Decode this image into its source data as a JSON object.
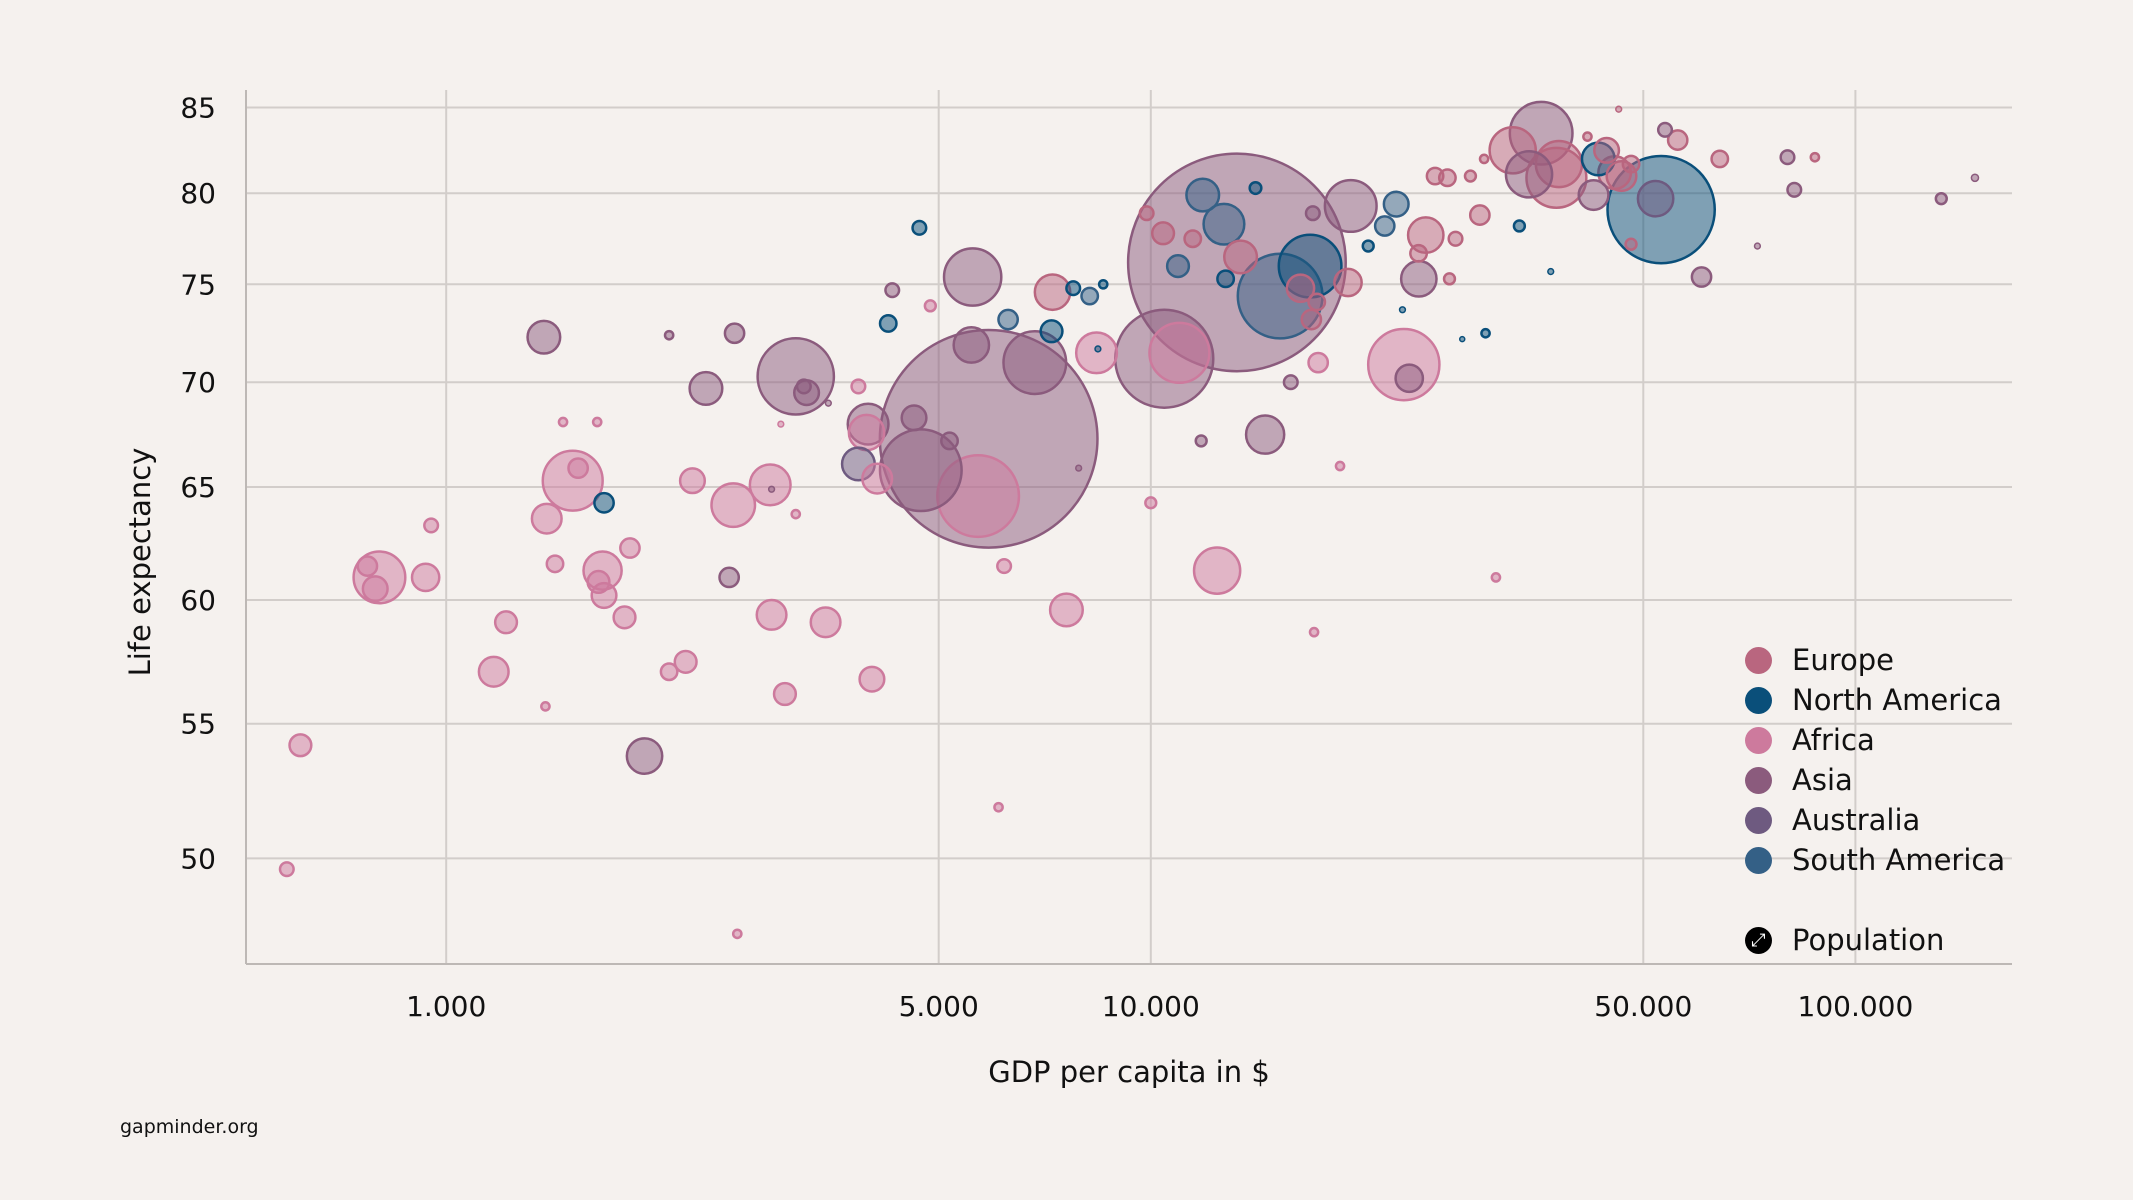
{
  "chart_data": {
    "type": "scatter",
    "variant": "bubble",
    "xlabel": "GDP per capita in $",
    "ylabel": "Life expectancy",
    "x_scale": "log",
    "x_ticks": [
      {
        "value": 1000,
        "label": "1.000"
      },
      {
        "value": 5000,
        "label": "5.000"
      },
      {
        "value": 10000,
        "label": "10.000"
      },
      {
        "value": 50000,
        "label": "50.000"
      },
      {
        "value": 100000,
        "label": "100.000"
      }
    ],
    "y_ticks": [
      {
        "value": 85,
        "label": "85"
      },
      {
        "value": 80,
        "label": "80"
      },
      {
        "value": 75,
        "label": "75"
      },
      {
        "value": 70,
        "label": "70"
      },
      {
        "value": 65,
        "label": "65"
      },
      {
        "value": 60,
        "label": "60"
      },
      {
        "value": 55,
        "label": "55"
      },
      {
        "value": 50,
        "label": "50"
      }
    ],
    "xlim": [
      500,
      200000
    ],
    "ylim": [
      46,
      86
    ],
    "grid": true,
    "legend_position": "bottom-right",
    "size_legend": "Population",
    "fields": [
      "gdp_per_capita",
      "life_expectancy",
      "population_millions"
    ],
    "series": [
      {
        "name": "Europe",
        "color": "#b9667f",
        "points": [
          [
            7253,
            74.6,
            37
          ],
          [
            13410,
            76.5,
            31.5
          ],
          [
            16310,
            74.8,
            22
          ],
          [
            19050,
            75.1,
            22
          ],
          [
            17200,
            74.1,
            8
          ],
          [
            16900,
            73.2,
            11
          ],
          [
            10410,
            77.8,
            14
          ],
          [
            9865,
            78.9,
            5.5
          ],
          [
            11470,
            77.5,
            8
          ],
          [
            24560,
            77.7,
            37
          ],
          [
            23990,
            76.7,
            8
          ],
          [
            25320,
            81.0,
            8
          ],
          [
            26360,
            80.9,
            8
          ],
          [
            28420,
            81.0,
            3.5
          ],
          [
            29310,
            78.8,
            11
          ],
          [
            27070,
            77.5,
            5.5
          ],
          [
            26540,
            75.3,
            3.5
          ],
          [
            29720,
            82.0,
            2
          ],
          [
            32630,
            82.5,
            63
          ],
          [
            37950,
            81.7,
            63
          ],
          [
            37640,
            80.9,
            106
          ],
          [
            41660,
            83.3,
            2
          ],
          [
            44350,
            82.5,
            18
          ],
          [
            45530,
            81.2,
            31.5
          ],
          [
            48040,
            81.7,
            8
          ],
          [
            46560,
            81.0,
            26
          ],
          [
            48040,
            77.2,
            3.5
          ],
          [
            55950,
            83.1,
            11
          ],
          [
            64200,
            82.0,
            8
          ],
          [
            87600,
            82.1,
            2
          ],
          [
            46140,
            84.9,
            1
          ]
        ]
      },
      {
        "name": "North America",
        "color": "#0a4f7a",
        "points": [
          [
            1675,
            64.3,
            11
          ],
          [
            4694,
            78.1,
            5.5
          ],
          [
            4240,
            73.0,
            8
          ],
          [
            7230,
            72.6,
            14
          ],
          [
            7761,
            74.8,
            5.5
          ],
          [
            8560,
            75.0,
            2
          ],
          [
            14080,
            80.3,
            4
          ],
          [
            12770,
            75.3,
            8
          ],
          [
            16830,
            76.0,
            116
          ],
          [
            20350,
            77.1,
            3.5
          ],
          [
            33350,
            78.2,
            3.5
          ],
          [
            29860,
            72.5,
            2
          ],
          [
            36950,
            75.7,
            1
          ],
          [
            22760,
            73.7,
            1
          ],
          [
            27670,
            72.2,
            0.5
          ],
          [
            53000,
            79.1,
            340
          ],
          [
            43160,
            82.0,
            31.5
          ],
          [
            8413,
            71.7,
            1
          ]
        ]
      },
      {
        "name": "Africa",
        "color": "#cd7a9d",
        "points": [
          [
            594,
            49.6,
            5.5
          ],
          [
            621,
            54.2,
            14
          ],
          [
            773,
            61.5,
            11
          ],
          [
            804,
            61.0,
            79
          ],
          [
            793,
            60.5,
            18
          ],
          [
            935,
            61.0,
            22
          ],
          [
            952,
            63.3,
            5.5
          ],
          [
            1168,
            57.1,
            26
          ],
          [
            1216,
            59.1,
            14
          ],
          [
            1383,
            55.7,
            2
          ],
          [
            1389,
            63.6,
            26
          ],
          [
            1427,
            61.6,
            8
          ],
          [
            1465,
            68.1,
            2
          ],
          [
            1512,
            65.3,
            106
          ],
          [
            1539,
            65.9,
            11
          ],
          [
            1638,
            68.1,
            2
          ],
          [
            1667,
            61.3,
            43
          ],
          [
            1645,
            60.8,
            14
          ],
          [
            1675,
            60.2,
            18
          ],
          [
            1791,
            59.3,
            14
          ],
          [
            1823,
            62.3,
            11
          ],
          [
            2072,
            57.1,
            8
          ],
          [
            2187,
            57.5,
            14
          ],
          [
            2236,
            65.3,
            18
          ],
          [
            2555,
            64.2,
            56
          ],
          [
            2589,
            47.2,
            2
          ],
          [
            2883,
            65.1,
            49
          ],
          [
            2896,
            59.4,
            26
          ],
          [
            3025,
            56.2,
            14
          ],
          [
            2985,
            68.0,
            1
          ],
          [
            3134,
            63.8,
            2
          ],
          [
            3455,
            59.1,
            26
          ],
          [
            3846,
            69.8,
            5.5
          ],
          [
            4020,
            56.8,
            18
          ],
          [
            3950,
            67.6,
            37
          ],
          [
            4090,
            65.4,
            26
          ],
          [
            4865,
            73.9,
            3.5
          ],
          [
            5688,
            64.6,
            197
          ],
          [
            6080,
            51.9,
            2
          ],
          [
            6192,
            61.5,
            5.5
          ],
          [
            7590,
            59.6,
            31.5
          ],
          [
            8375,
            71.5,
            49
          ],
          [
            10000,
            64.3,
            3.5
          ],
          [
            10980,
            71.5,
            106
          ],
          [
            12420,
            61.3,
            63
          ],
          [
            17050,
            58.7,
            2
          ],
          [
            17280,
            71.0,
            11
          ],
          [
            18560,
            66.0,
            2
          ],
          [
            30890,
            61.0,
            2
          ],
          [
            22860,
            70.9,
            150
          ]
        ]
      },
      {
        "name": "Asia",
        "color": "#8b5b7d",
        "points": [
          [
            1376,
            72.3,
            31.5
          ],
          [
            1912,
            53.8,
            37
          ],
          [
            2072,
            72.4,
            2
          ],
          [
            2337,
            69.7,
            31.5
          ],
          [
            2521,
            61.0,
            11
          ],
          [
            2566,
            72.5,
            11
          ],
          [
            2896,
            64.9,
            1
          ],
          [
            3134,
            70.3,
            172
          ],
          [
            3247,
            69.5,
            18
          ],
          [
            3218,
            69.8,
            5.5
          ],
          [
            3486,
            69.0,
            1
          ],
          [
            3970,
            68.0,
            49
          ],
          [
            4613,
            68.3,
            18
          ],
          [
            4296,
            74.7,
            5.5
          ],
          [
            4716,
            65.8,
            197
          ],
          [
            5180,
            67.2,
            8
          ],
          [
            5563,
            71.9,
            37
          ],
          [
            5587,
            75.4,
            97
          ],
          [
            5887,
            67.3,
            1400
          ],
          [
            6845,
            71.0,
            116
          ],
          [
            7900,
            65.9,
            1
          ],
          [
            10450,
            71.2,
            284
          ],
          [
            13250,
            76.2,
            1400
          ],
          [
            11790,
            67.2,
            3.5
          ],
          [
            14530,
            67.5,
            43
          ],
          [
            15800,
            70.0,
            5.5
          ],
          [
            16980,
            78.9,
            5.5
          ],
          [
            19220,
            79.3,
            79
          ],
          [
            24010,
            75.3,
            37
          ],
          [
            23270,
            70.2,
            22
          ],
          [
            35810,
            83.5,
            116
          ],
          [
            34420,
            81.1,
            63
          ],
          [
            42500,
            79.9,
            26
          ],
          [
            53680,
            83.7,
            5.5
          ],
          [
            60480,
            75.4,
            11
          ],
          [
            72600,
            77.1,
            1
          ],
          [
            80100,
            82.1,
            5.5
          ],
          [
            81900,
            80.2,
            5.5
          ],
          [
            132400,
            79.7,
            3.5
          ],
          [
            147800,
            80.9,
            1.5
          ]
        ]
      },
      {
        "name": "Australia",
        "color": "#6e5a80",
        "points": [
          [
            3846,
            66.1,
            31.5
          ],
          [
            52050,
            79.7,
            37
          ]
        ]
      },
      {
        "name": "South America",
        "color": "#346086",
        "points": [
          [
            11850,
            79.9,
            31.5
          ],
          [
            12700,
            78.3,
            49
          ],
          [
            10930,
            76.0,
            14
          ],
          [
            6273,
            73.2,
            11
          ],
          [
            8190,
            74.4,
            8
          ],
          [
            22300,
            79.4,
            18
          ],
          [
            21480,
            78.2,
            11
          ],
          [
            15260,
            74.4,
            212
          ]
        ]
      }
    ]
  },
  "source": "gapminder.org"
}
